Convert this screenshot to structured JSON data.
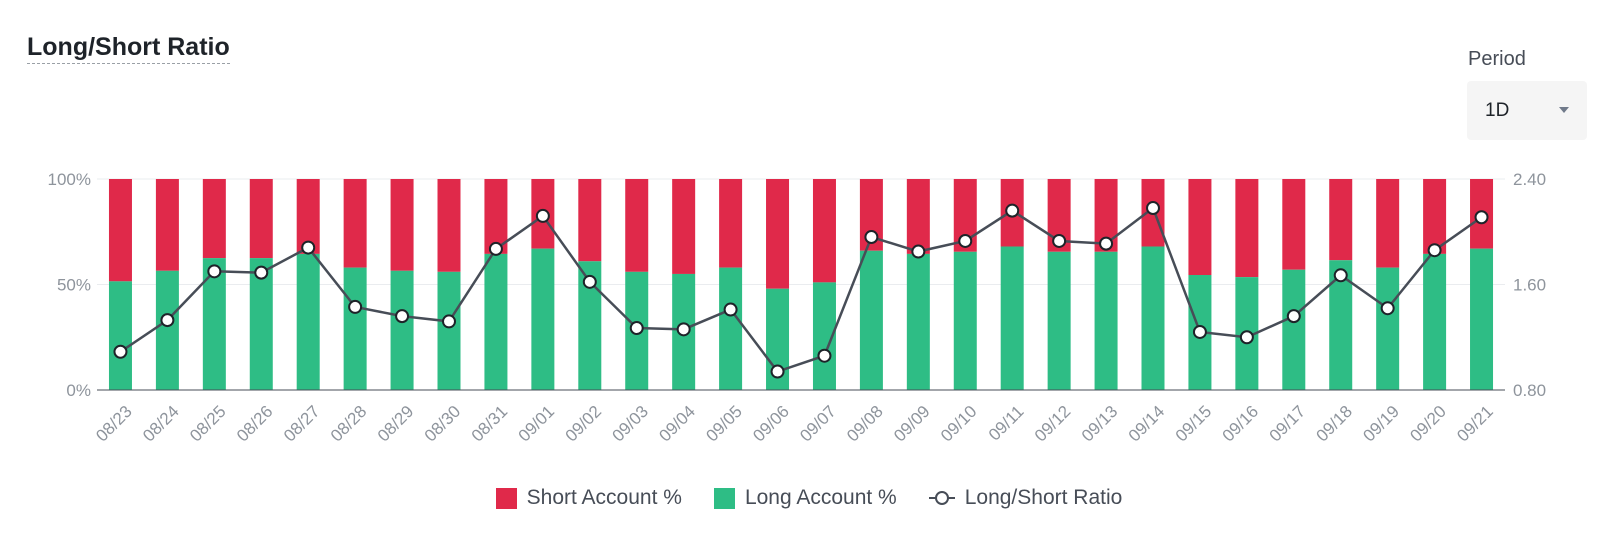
{
  "header": {
    "title": "Long/Short Ratio"
  },
  "period": {
    "label": "Period",
    "value": "1D"
  },
  "colors": {
    "short": "#e0294a",
    "long": "#2ebd85",
    "ratio_line": "#474d57",
    "grid": "#eaecef"
  },
  "chart_data": {
    "type": "bar",
    "stacked": true,
    "categories": [
      "08/23",
      "08/24",
      "08/25",
      "08/26",
      "08/27",
      "08/28",
      "08/29",
      "08/30",
      "08/31",
      "09/01",
      "09/02",
      "09/03",
      "09/04",
      "09/05",
      "09/06",
      "09/07",
      "09/08",
      "09/09",
      "09/10",
      "09/11",
      "09/12",
      "09/13",
      "09/14",
      "09/15",
      "09/16",
      "09/17",
      "09/18",
      "09/19",
      "09/20",
      "09/21"
    ],
    "series": [
      {
        "name": "Short Account %",
        "axis": "left",
        "values": [
          48.5,
          43.5,
          37.5,
          37.5,
          35.5,
          42,
          43.5,
          44,
          35.5,
          33,
          39,
          44,
          45,
          42,
          52,
          49,
          34,
          35.5,
          34.5,
          32,
          34.5,
          34.5,
          32,
          45.5,
          46.5,
          43,
          38.5,
          42,
          35.5,
          33
        ]
      },
      {
        "name": "Long Account %",
        "axis": "left",
        "values": [
          51.5,
          56.5,
          62.5,
          62.5,
          64.5,
          58,
          56.5,
          56,
          64.5,
          67,
          61,
          56,
          55,
          58,
          48,
          51,
          66,
          64.5,
          65.5,
          68,
          65.5,
          65.5,
          68,
          54.5,
          53.5,
          57,
          61.5,
          58,
          64.5,
          67
        ]
      },
      {
        "name": "Long/Short Ratio",
        "axis": "right",
        "type": "line",
        "values": [
          1.09,
          1.33,
          1.7,
          1.69,
          1.88,
          1.43,
          1.36,
          1.32,
          1.87,
          2.12,
          1.62,
          1.27,
          1.26,
          1.41,
          0.94,
          1.06,
          1.96,
          1.85,
          1.93,
          2.16,
          1.93,
          1.91,
          2.18,
          1.24,
          1.2,
          1.36,
          1.67,
          1.42,
          1.86,
          2.11
        ]
      }
    ],
    "y_left": {
      "ticks": [
        "0%",
        "50%",
        "100%"
      ],
      "range": [
        0,
        100
      ]
    },
    "y_right": {
      "ticks": [
        "0.80",
        "1.60",
        "2.40"
      ],
      "range": [
        0.8,
        2.4
      ]
    },
    "legend_position": "bottom-center",
    "grid": true
  }
}
